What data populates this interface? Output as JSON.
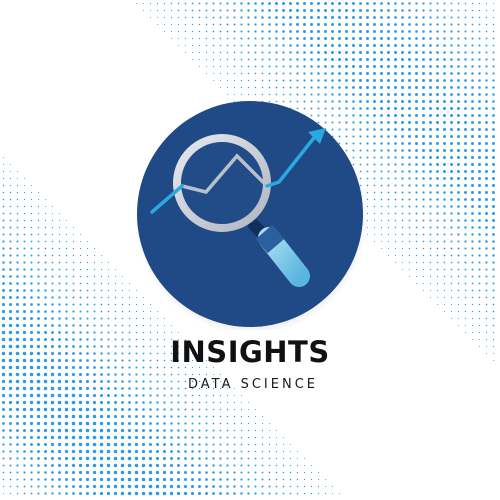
{
  "logo": {
    "brand_name": "INSIGHTS",
    "tagline": "DATA SCIENCE",
    "icon": "magnifier-trend-icon",
    "colors": {
      "circle": "#1f4a85",
      "accent": "#2aa8e0",
      "lens_ring": "#c9cfd8",
      "handle": "#7ecbe9",
      "text": "#111111",
      "halftone": "#2b9be6"
    }
  }
}
